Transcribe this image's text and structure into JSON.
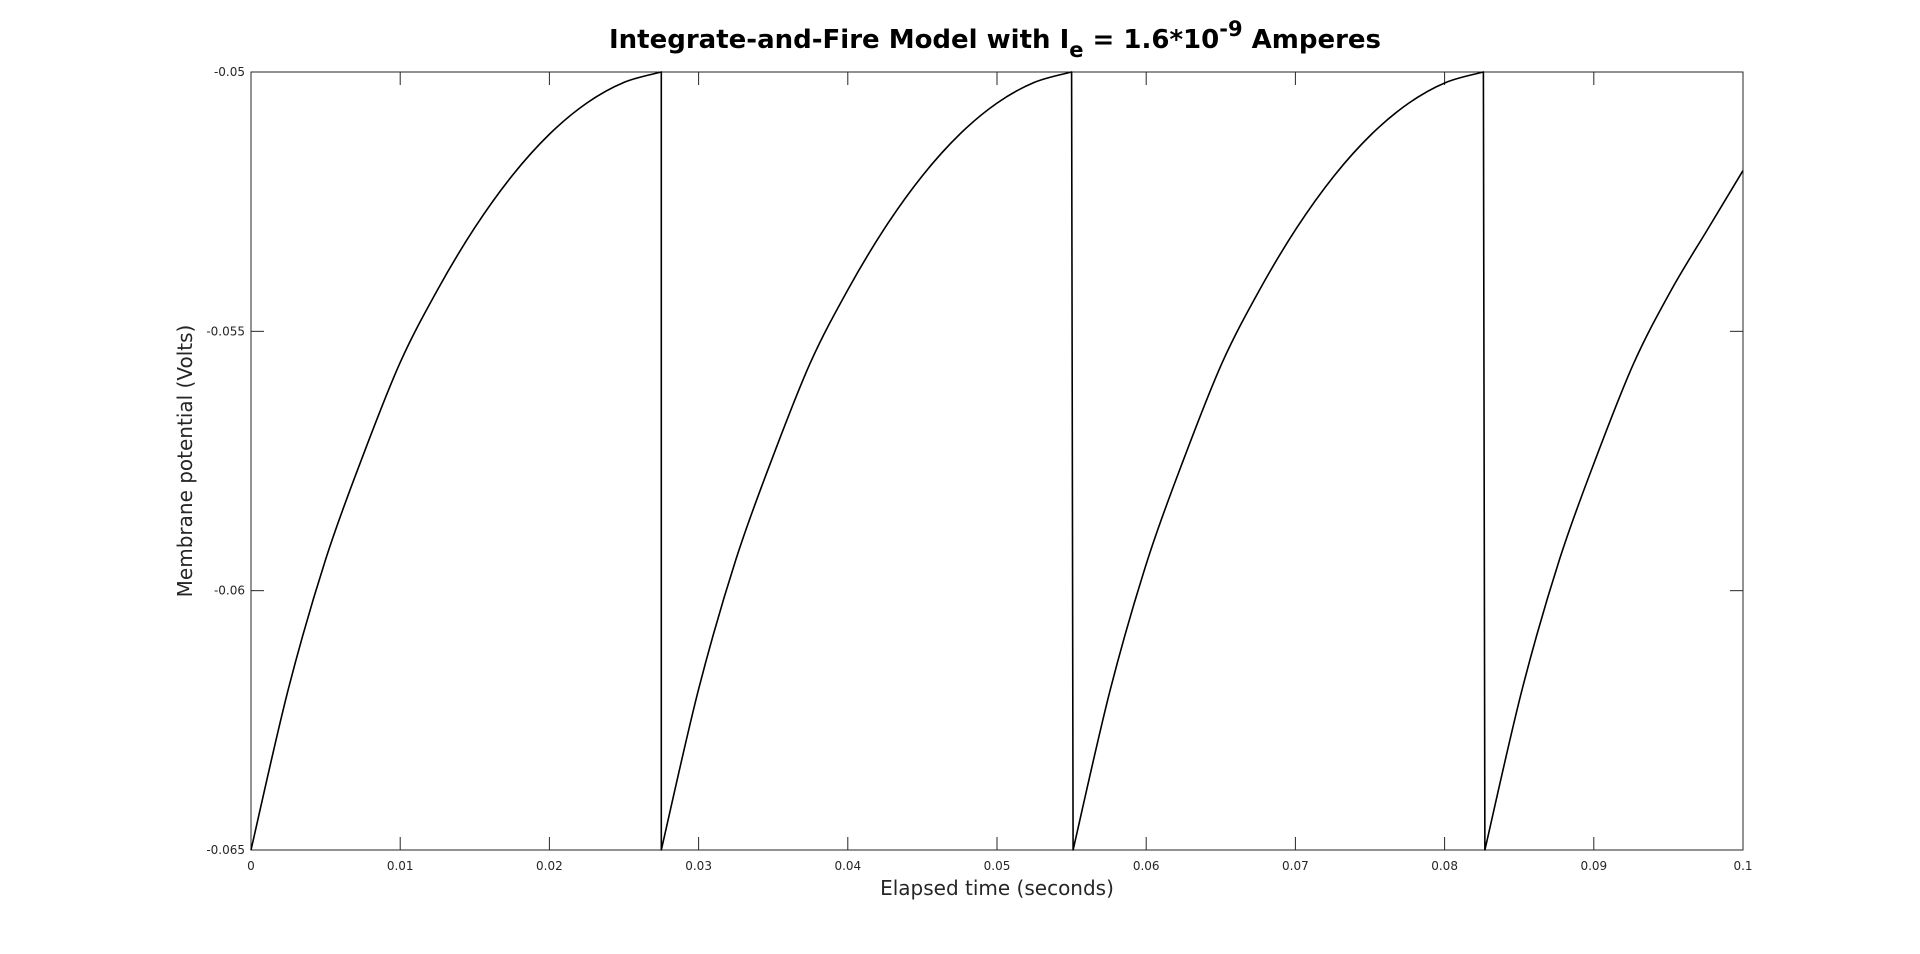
{
  "chart_data": {
    "type": "line",
    "title": {
      "prefix": "Integrate-and-Fire Model with I",
      "subscript": "e",
      "middle": " = 1.6*10",
      "superscript": "-9",
      "suffix": " Amperes"
    },
    "xlabel": "Elapsed time (seconds)",
    "ylabel": "Membrane potential (Volts)",
    "xlim": [
      0,
      0.1
    ],
    "ylim": [
      -0.065,
      -0.05
    ],
    "xticks": [
      0,
      0.01,
      0.02,
      0.03,
      0.04,
      0.05,
      0.06,
      0.07,
      0.08,
      0.09,
      0.1
    ],
    "xtick_labels": [
      "0",
      "0.01",
      "0.02",
      "0.03",
      "0.04",
      "0.05",
      "0.06",
      "0.07",
      "0.08",
      "0.09",
      "0.1"
    ],
    "yticks": [
      -0.065,
      -0.06,
      -0.055,
      -0.05
    ],
    "ytick_labels": [
      "-0.065",
      "-0.06",
      "-0.055",
      "-0.05"
    ],
    "grid": false,
    "line_color": "#000000",
    "series": [
      {
        "x": [
          0,
          0.0025,
          0.005,
          0.0075,
          0.01,
          0.0125,
          0.015,
          0.0175,
          0.02,
          0.0225,
          0.025,
          0.0275,
          0.0275,
          0.03,
          0.0325,
          0.035,
          0.0375,
          0.04,
          0.0425,
          0.045,
          0.0475,
          0.05,
          0.0525,
          0.055,
          0.0551,
          0.0576,
          0.0601,
          0.0626,
          0.0651,
          0.0676,
          0.0701,
          0.0726,
          0.0751,
          0.0776,
          0.0801,
          0.0826,
          0.0827,
          0.0852,
          0.0877,
          0.0902,
          0.0927,
          0.0952,
          0.0977,
          0.1
        ],
        "y": [
          -0.065,
          -0.0619,
          -0.0594,
          -0.0574,
          -0.0556,
          -0.0542,
          -0.053,
          -0.052,
          -0.0512,
          -0.0506,
          -0.0502,
          -0.05,
          -0.065,
          -0.0619,
          -0.0594,
          -0.0574,
          -0.0556,
          -0.0542,
          -0.053,
          -0.052,
          -0.0512,
          -0.0506,
          -0.0502,
          -0.05,
          -0.065,
          -0.0619,
          -0.0594,
          -0.0574,
          -0.0556,
          -0.0542,
          -0.053,
          -0.052,
          -0.0512,
          -0.0506,
          -0.0502,
          -0.05,
          -0.065,
          -0.0619,
          -0.0594,
          -0.0574,
          -0.0556,
          -0.0542,
          -0.053,
          -0.0519
        ]
      }
    ]
  }
}
